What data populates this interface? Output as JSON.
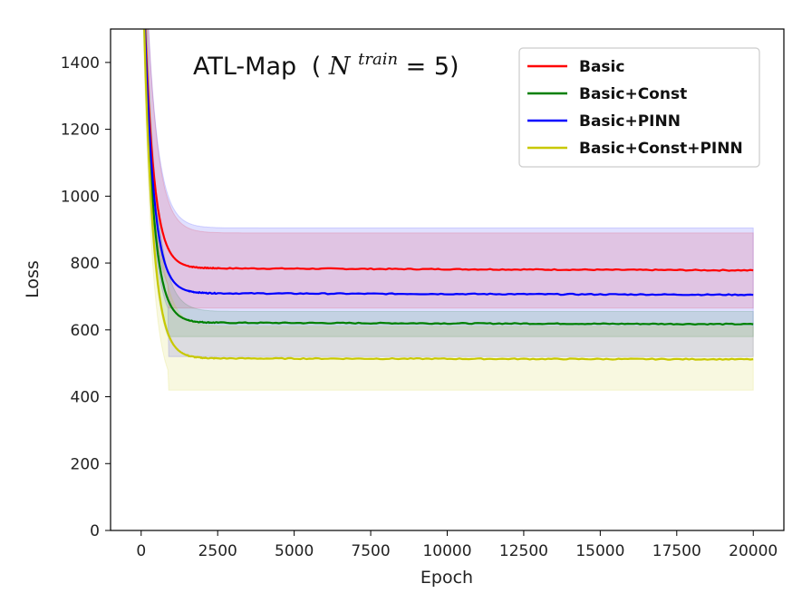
{
  "chart_data": {
    "type": "line",
    "title": "ATL-Map",
    "title_math": {
      "open": "(",
      "symbol": "N",
      "superscript": "train",
      "rest": " = 5)"
    },
    "xlabel": "Epoch",
    "ylabel": "Loss",
    "xlim": [
      -1000,
      21000
    ],
    "ylim": [
      0,
      1500
    ],
    "xticks": [
      0,
      2500,
      5000,
      7500,
      10000,
      12500,
      15000,
      17500,
      20000
    ],
    "yticks": [
      0,
      200,
      400,
      600,
      800,
      1000,
      1200,
      1400
    ],
    "grid": false,
    "legend_position": "top-right",
    "series": [
      {
        "name": "Basic",
        "color": "#ff0000",
        "start": 1500,
        "plateau": 785,
        "plateau_end": 778,
        "band_low": 665,
        "band_high": 890
      },
      {
        "name": "Basic+Const",
        "color": "#008000",
        "start": 1500,
        "plateau": 622,
        "plateau_end": 617,
        "band_low": 580,
        "band_high": 655
      },
      {
        "name": "Basic+PINN",
        "color": "#0000ff",
        "start": 1500,
        "plateau": 710,
        "plateau_end": 705,
        "band_low": 520,
        "band_high": 905
      },
      {
        "name": "Basic+Const+PINN",
        "color": "#c8c800",
        "start": 1500,
        "plateau": 515,
        "plateau_end": 512,
        "band_low": 420,
        "band_high": 610
      }
    ]
  }
}
